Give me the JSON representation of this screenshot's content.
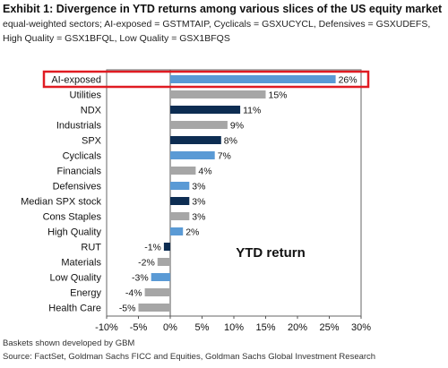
{
  "header": {
    "title": "Exhibit 1: Divergence in YTD returns among various slices of the US equity market",
    "subtitle": "equal-weighted sectors; AI-exposed = GSTMTAIP, Cyclicals = GSXUCYCL, Defensives = GSXUDEFS, High Quality = GSX1BFQL, Low Quality = GSX1BFQS"
  },
  "footer": {
    "note": "Baskets shown developed by GBM",
    "source": "Source: FactSet, Goldman Sachs FICC and Equities, Goldman Sachs Global Investment Research"
  },
  "colors": {
    "gray": "#a6a6a6",
    "navy": "#0d2d52",
    "light_blue": "#5a9ad5",
    "highlight_border": "#e01b22"
  },
  "chart_data": {
    "type": "bar",
    "orientation": "horizontal",
    "annotation": "YTD return",
    "xlim": [
      -10,
      30
    ],
    "xticks": [
      -10,
      -5,
      0,
      5,
      10,
      15,
      20,
      25,
      30
    ],
    "xtick_labels": [
      "-10%",
      "-5%",
      "0%",
      "5%",
      "10%",
      "15%",
      "20%",
      "25%",
      "30%"
    ],
    "highlighted": "AI-exposed",
    "bars": [
      {
        "category": "AI-exposed",
        "value": 26,
        "label": "26%",
        "color": "light_blue"
      },
      {
        "category": "Utilities",
        "value": 15,
        "label": "15%",
        "color": "gray"
      },
      {
        "category": "NDX",
        "value": 11,
        "label": "11%",
        "color": "navy"
      },
      {
        "category": "Industrials",
        "value": 9,
        "label": "9%",
        "color": "gray"
      },
      {
        "category": "SPX",
        "value": 8,
        "label": "8%",
        "color": "navy"
      },
      {
        "category": "Cyclicals",
        "value": 7,
        "label": "7%",
        "color": "light_blue"
      },
      {
        "category": "Financials",
        "value": 4,
        "label": "4%",
        "color": "gray"
      },
      {
        "category": "Defensives",
        "value": 3,
        "label": "3%",
        "color": "light_blue"
      },
      {
        "category": "Median SPX stock",
        "value": 3,
        "label": "3%",
        "color": "navy"
      },
      {
        "category": "Cons Staples",
        "value": 3,
        "label": "3%",
        "color": "gray"
      },
      {
        "category": "High Quality",
        "value": 2,
        "label": "2%",
        "color": "light_blue"
      },
      {
        "category": "RUT",
        "value": -1,
        "label": "-1%",
        "color": "navy"
      },
      {
        "category": "Materials",
        "value": -2,
        "label": "-2%",
        "color": "gray"
      },
      {
        "category": "Low Quality",
        "value": -3,
        "label": "-3%",
        "color": "light_blue"
      },
      {
        "category": "Energy",
        "value": -4,
        "label": "-4%",
        "color": "gray"
      },
      {
        "category": "Health Care",
        "value": -5,
        "label": "-5%",
        "color": "gray"
      }
    ]
  }
}
